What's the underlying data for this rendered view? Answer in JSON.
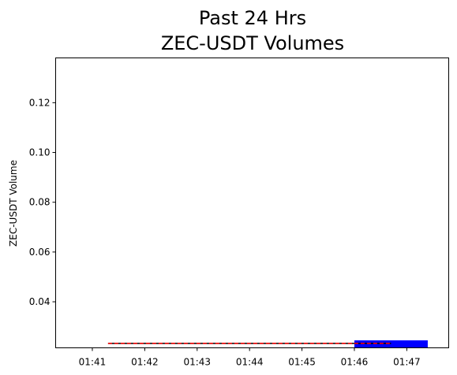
{
  "chart_data": {
    "type": "bar",
    "title_lines": [
      "Past 24 Hrs",
      "ZEC-USDT Volumes"
    ],
    "xlabel": "",
    "ylabel": "ZEC-USDT Volume",
    "x_ticks": [
      "01:41",
      "01:42",
      "01:43",
      "01:44",
      "01:45",
      "01:46",
      "01:47"
    ],
    "xlim_minutes": [
      40.3,
      47.8
    ],
    "ylim": [
      0.0215,
      0.138
    ],
    "y_ticks": [
      0.04,
      0.06,
      0.08,
      0.1,
      0.12
    ],
    "y_tick_labels": [
      "0.04",
      "0.06",
      "0.08",
      "0.10",
      "0.12"
    ],
    "bars": [
      {
        "x_start_minute": 46.0,
        "x_end_minute": 47.4,
        "value": 0.0245,
        "color": "#0000ff"
      }
    ],
    "lines": [
      {
        "x_start_minute": 41.3,
        "x_end_minute": 46.7,
        "value": 0.0233,
        "color": "#000000",
        "style": "solid"
      },
      {
        "x_start_minute": 41.3,
        "x_end_minute": 46.7,
        "value": 0.0233,
        "color": "#ff0000",
        "style": "dashed"
      }
    ],
    "grid": false,
    "legend": "none"
  }
}
